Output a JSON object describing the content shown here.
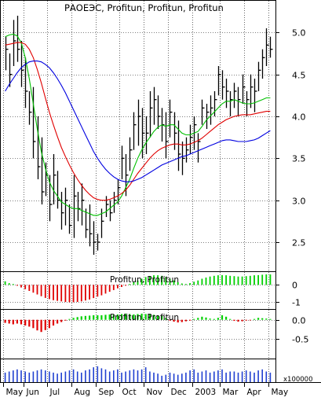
{
  "chart_data": [
    {
      "type": "ohlc",
      "title": "РАОЕЭС, Profitun, Profitun, Profitun",
      "ylim": [
        2.2,
        5.2
      ],
      "yticks": [
        2.5,
        3.0,
        3.5,
        4.0,
        4.5,
        5.0
      ],
      "ytick_labels": [
        "2.5",
        "3.0",
        "3.5",
        "4.0",
        "4.5",
        "5.0"
      ],
      "grid": true,
      "x": [
        1,
        2,
        3,
        4,
        5,
        6,
        7,
        8,
        9,
        10,
        11,
        12,
        13,
        14,
        15,
        16,
        17,
        18,
        19,
        20,
        21,
        22,
        23,
        24,
        25,
        26,
        27,
        28,
        29,
        30,
        31,
        32,
        33,
        34,
        35,
        36,
        37,
        38,
        39,
        40,
        41,
        42,
        43,
        44,
        45,
        46,
        47,
        48,
        49,
        50,
        51,
        52,
        53,
        54,
        55,
        56,
        57,
        58,
        59,
        60,
        61,
        62,
        63,
        64,
        65,
        66,
        67
      ],
      "high": [
        4.95,
        4.75,
        5.15,
        5.2,
        4.9,
        4.7,
        4.3,
        4.35,
        4.0,
        3.75,
        3.45,
        3.3,
        3.55,
        3.35,
        3.1,
        3.15,
        2.95,
        3.3,
        3.1,
        3.2,
        2.9,
        2.95,
        2.75,
        2.6,
        2.9,
        3.05,
        3.0,
        3.1,
        3.25,
        3.65,
        3.55,
        3.75,
        4.05,
        4.2,
        4.1,
        4.0,
        4.3,
        4.35,
        4.25,
        4.1,
        4.05,
        4.2,
        4.05,
        3.95,
        3.7,
        3.75,
        3.9,
        4.0,
        3.8,
        4.2,
        4.15,
        4.25,
        4.3,
        4.6,
        4.55,
        4.45,
        4.3,
        4.4,
        4.35,
        4.5,
        4.3,
        4.5,
        4.45,
        4.65,
        4.8,
        5.05,
        4.95
      ],
      "low": [
        4.55,
        4.35,
        4.6,
        4.65,
        4.35,
        4.1,
        3.9,
        3.5,
        3.25,
        2.95,
        3.05,
        2.75,
        2.95,
        2.9,
        2.65,
        2.7,
        2.6,
        2.55,
        2.75,
        2.7,
        2.55,
        2.45,
        2.35,
        2.4,
        2.55,
        2.8,
        2.75,
        2.85,
        2.95,
        3.25,
        3.05,
        3.35,
        3.6,
        3.65,
        3.5,
        3.55,
        3.75,
        3.9,
        3.85,
        3.7,
        3.5,
        3.75,
        3.6,
        3.35,
        3.3,
        3.45,
        3.55,
        3.6,
        3.45,
        3.9,
        3.85,
        3.9,
        4.0,
        4.25,
        4.2,
        4.1,
        4.0,
        4.1,
        4.0,
        4.15,
        4.0,
        4.1,
        4.05,
        4.3,
        4.45,
        4.6,
        4.7
      ],
      "close": [
        4.8,
        4.5,
        4.9,
        4.8,
        4.55,
        4.3,
        4.05,
        3.7,
        3.4,
        3.1,
        3.3,
        2.95,
        3.3,
        3.0,
        2.85,
        3.0,
        2.7,
        3.05,
        2.9,
        3.0,
        2.65,
        2.6,
        2.5,
        2.5,
        2.75,
        2.95,
        2.85,
        3.0,
        3.15,
        3.5,
        3.3,
        3.6,
        3.9,
        4.0,
        3.8,
        3.8,
        4.1,
        4.2,
        4.0,
        3.9,
        3.7,
        4.05,
        3.8,
        3.55,
        3.5,
        3.6,
        3.75,
        3.9,
        3.7,
        4.1,
        4.05,
        4.1,
        4.2,
        4.5,
        4.35,
        4.3,
        4.2,
        4.3,
        4.2,
        4.35,
        4.2,
        4.35,
        4.3,
        4.55,
        4.7,
        4.85,
        4.8
      ],
      "series": [
        {
          "name": "",
          "color": "#00c000",
          "values": [
            4.95,
            4.97,
            4.98,
            4.96,
            4.88,
            4.7,
            4.45,
            4.15,
            3.85,
            3.58,
            3.38,
            3.22,
            3.12,
            3.05,
            2.98,
            2.95,
            2.92,
            2.9,
            2.9,
            2.88,
            2.86,
            2.84,
            2.82,
            2.82,
            2.84,
            2.86,
            2.9,
            2.94,
            2.98,
            3.05,
            3.15,
            3.25,
            3.38,
            3.5,
            3.6,
            3.68,
            3.75,
            3.82,
            3.87,
            3.9,
            3.88,
            3.9,
            3.9,
            3.85,
            3.8,
            3.78,
            3.78,
            3.8,
            3.82,
            3.88,
            3.95,
            4.0,
            4.05,
            4.1,
            4.15,
            4.18,
            4.18,
            4.2,
            4.18,
            4.16,
            4.15,
            4.15,
            4.16,
            4.18,
            4.2,
            4.22,
            4.22
          ]
        },
        {
          "name": "",
          "color": "#e00000",
          "values": [
            4.85,
            4.86,
            4.87,
            4.88,
            4.88,
            4.86,
            4.8,
            4.7,
            4.56,
            4.4,
            4.22,
            4.05,
            3.9,
            3.76,
            3.63,
            3.52,
            3.42,
            3.33,
            3.25,
            3.18,
            3.12,
            3.07,
            3.03,
            3.01,
            3.0,
            3.0,
            3.01,
            3.03,
            3.05,
            3.08,
            3.12,
            3.18,
            3.25,
            3.32,
            3.38,
            3.44,
            3.5,
            3.55,
            3.59,
            3.62,
            3.64,
            3.66,
            3.67,
            3.67,
            3.66,
            3.66,
            3.67,
            3.69,
            3.71,
            3.74,
            3.78,
            3.82,
            3.86,
            3.9,
            3.93,
            3.96,
            3.98,
            4.0,
            4.01,
            4.02,
            4.02,
            4.02,
            4.03,
            4.04,
            4.05,
            4.06,
            4.06
          ]
        },
        {
          "name": "",
          "color": "#0000e0",
          "values": [
            4.3,
            4.38,
            4.45,
            4.52,
            4.58,
            4.62,
            4.65,
            4.66,
            4.66,
            4.65,
            4.62,
            4.58,
            4.52,
            4.45,
            4.37,
            4.28,
            4.18,
            4.08,
            3.98,
            3.88,
            3.78,
            3.68,
            3.58,
            3.5,
            3.43,
            3.37,
            3.32,
            3.28,
            3.25,
            3.23,
            3.22,
            3.22,
            3.23,
            3.25,
            3.27,
            3.3,
            3.33,
            3.36,
            3.39,
            3.42,
            3.44,
            3.46,
            3.48,
            3.5,
            3.52,
            3.53,
            3.55,
            3.57,
            3.59,
            3.61,
            3.63,
            3.65,
            3.67,
            3.69,
            3.71,
            3.72,
            3.72,
            3.71,
            3.7,
            3.7,
            3.7,
            3.71,
            3.72,
            3.74,
            3.77,
            3.8,
            3.83
          ]
        }
      ]
    },
    {
      "type": "bar",
      "title": "Profitun, Profitun",
      "ylim": [
        -1.3,
        0.6
      ],
      "yticks": [
        0,
        -1
      ],
      "ytick_labels": [
        "0",
        "-1"
      ],
      "values": [
        0.2,
        0.1,
        0.05,
        -0.05,
        -0.15,
        -0.25,
        -0.35,
        -0.45,
        -0.55,
        -0.65,
        -0.75,
        -0.82,
        -0.88,
        -0.92,
        -0.95,
        -0.98,
        -1.0,
        -1.0,
        -0.98,
        -0.95,
        -0.9,
        -0.84,
        -0.76,
        -0.68,
        -0.6,
        -0.5,
        -0.4,
        -0.3,
        -0.2,
        -0.12,
        -0.05,
        0.05,
        0.15,
        0.25,
        0.35,
        0.45,
        0.5,
        0.55,
        0.55,
        0.52,
        0.45,
        0.35,
        0.25,
        0.15,
        0.08,
        0.05,
        0.1,
        0.18,
        0.25,
        0.35,
        0.42,
        0.48,
        0.52,
        0.55,
        0.56,
        0.55,
        0.52,
        0.5,
        0.48,
        0.48,
        0.5,
        0.52,
        0.55,
        0.56,
        0.58,
        0.6,
        0.6
      ],
      "colors": {
        "positive": "#00d000",
        "negative": "#e00000"
      }
    },
    {
      "type": "bar",
      "title": "Profitun, Profitun",
      "ylim": [
        -1.0,
        0.2
      ],
      "yticks": [
        0.0,
        -0.5
      ],
      "ytick_labels": [
        "0.0",
        "-0.5"
      ],
      "values": [
        -0.08,
        -0.1,
        -0.12,
        -0.1,
        -0.12,
        -0.15,
        -0.18,
        -0.22,
        -0.28,
        -0.32,
        -0.27,
        -0.22,
        -0.15,
        -0.1,
        -0.06,
        -0.02,
        0.02,
        0.05,
        0.07,
        0.09,
        0.1,
        0.11,
        0.12,
        0.12,
        0.12,
        0.13,
        0.14,
        0.13,
        0.14,
        0.15,
        0.16,
        0.15,
        0.14,
        0.15,
        0.16,
        0.15,
        0.14,
        0.13,
        0.12,
        0.1,
        0.05,
        -0.02,
        -0.05,
        -0.07,
        -0.06,
        -0.04,
        -0.02,
        0.02,
        0.05,
        0.08,
        0.06,
        0.03,
        0.02,
        0.05,
        0.12,
        0.08,
        0.02,
        -0.03,
        -0.05,
        -0.04,
        -0.02,
        -0.01,
        0.02,
        0.05,
        0.04,
        0.03,
        0.02
      ],
      "colors": {
        "positive": "#00d000",
        "negative": "#e00000"
      }
    },
    {
      "type": "bar",
      "ylim": [
        0,
        1.0
      ],
      "unit_label": "x100000",
      "values": [
        0.45,
        0.5,
        0.55,
        0.6,
        0.55,
        0.5,
        0.45,
        0.5,
        0.55,
        0.6,
        0.55,
        0.5,
        0.45,
        0.4,
        0.45,
        0.5,
        0.55,
        0.6,
        0.5,
        0.45,
        0.55,
        0.6,
        0.7,
        0.75,
        0.65,
        0.6,
        0.5,
        0.55,
        0.6,
        0.45,
        0.5,
        0.55,
        0.6,
        0.55,
        0.6,
        0.7,
        0.5,
        0.45,
        0.4,
        0.3,
        0.35,
        0.45,
        0.4,
        0.35,
        0.4,
        0.45,
        0.55,
        0.6,
        0.45,
        0.5,
        0.55,
        0.45,
        0.5,
        0.55,
        0.6,
        0.45,
        0.5,
        0.5,
        0.45,
        0.5,
        0.55,
        0.5,
        0.45,
        0.55,
        0.6,
        0.5,
        0.45
      ],
      "color": "#2040d0"
    }
  ],
  "x_axis": {
    "tick_labels": [
      "May",
      "Jun",
      "Jul",
      "Aug",
      "Sep",
      "Oct",
      "Nov",
      "Dec",
      "2003",
      "Mar",
      "Apr",
      "May"
    ],
    "tick_positions": [
      1,
      6,
      12,
      18,
      24,
      30,
      36,
      42,
      48,
      55,
      61,
      67
    ]
  }
}
